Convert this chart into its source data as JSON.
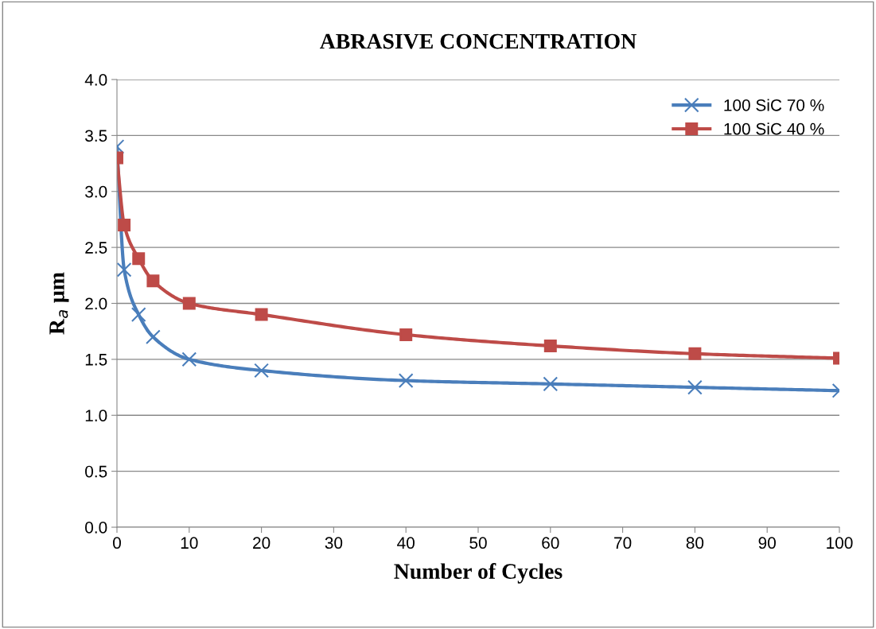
{
  "chart_data": {
    "type": "line",
    "title": "ABRASIVE CONCENTRATION",
    "xlabel": "Number of Cycles",
    "ylabel": "R$_{a}$ µm",
    "x": [
      0,
      1,
      3,
      5,
      10,
      20,
      40,
      60,
      80,
      100
    ],
    "series": [
      {
        "name": "100 SiC 70 %",
        "color": "#4a7ebb",
        "marker": "cross",
        "values": [
          3.4,
          2.3,
          1.9,
          1.7,
          1.5,
          1.4,
          1.31,
          1.28,
          1.25,
          1.22
        ]
      },
      {
        "name": "100 SiC 40 %",
        "color": "#be4b48",
        "marker": "square",
        "values": [
          3.3,
          2.7,
          2.4,
          2.2,
          2.0,
          1.9,
          1.72,
          1.62,
          1.55,
          1.51
        ]
      }
    ],
    "xlim": [
      0,
      100
    ],
    "xticks": [
      0,
      10,
      20,
      30,
      40,
      50,
      60,
      70,
      80,
      90,
      100
    ],
    "ylim": [
      0,
      4
    ],
    "yticks": [
      {
        "value": 0,
        "label": "0.0"
      },
      {
        "value": 0.5,
        "label": "0.5"
      },
      {
        "value": 1,
        "label": "1.0"
      },
      {
        "value": 1.5,
        "label": "1.5"
      },
      {
        "value": 2,
        "label": "2.0"
      },
      {
        "value": 2.5,
        "label": "2.5"
      },
      {
        "value": 3,
        "label": "3.0"
      },
      {
        "value": 3.5,
        "label": "3.5"
      },
      {
        "value": 4,
        "label": "4.0"
      }
    ],
    "grid": "y",
    "legend": "top right",
    "line_style": "solid"
  }
}
